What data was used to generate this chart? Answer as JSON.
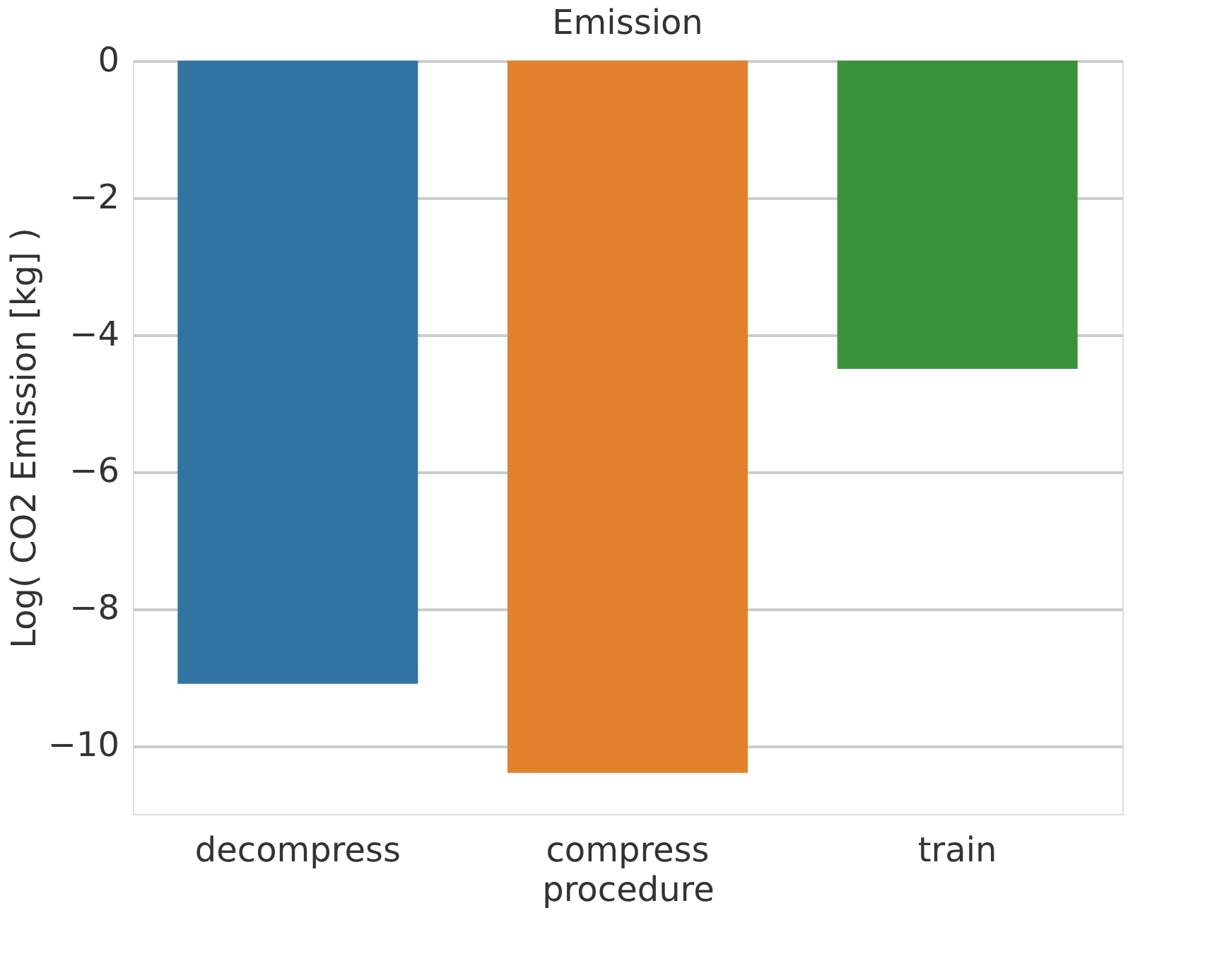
{
  "chart_data": {
    "type": "bar",
    "title": "Emission",
    "xlabel": "procedure",
    "ylabel": "Log( CO2 Emission [kg] )",
    "categories": [
      "decompress",
      "compress",
      "train"
    ],
    "values": [
      -9.1,
      -10.4,
      -4.5
    ],
    "colors": [
      "#3274a1",
      "#e1812c",
      "#3a923a"
    ],
    "ylim": [
      -11,
      0
    ],
    "yticks": [
      0,
      -2,
      -4,
      -6,
      -8,
      -10
    ],
    "grid": "y"
  }
}
